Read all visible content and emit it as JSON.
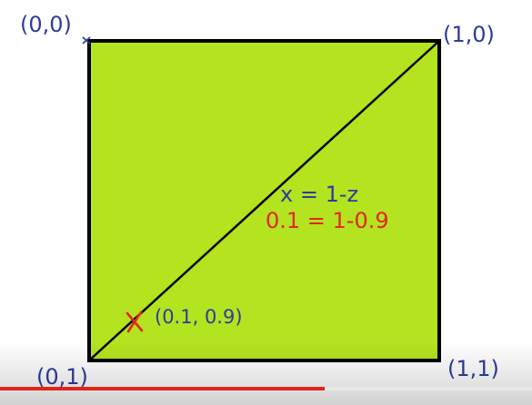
{
  "labels": {
    "top_left": "(0,0)",
    "top_right": "(1,0)",
    "bottom_left": "(0,1)",
    "bottom_right": "(1,1)",
    "point": "(0.1, 0.9)",
    "equation_general": "x = 1-z",
    "equation_example": "0.1 = 1-0.9"
  },
  "colors": {
    "square_fill": "#b4e31f",
    "ink_blue": "#2e3c9c",
    "ink_red": "#e3261a",
    "outline": "#000000",
    "progress_played": "#e0241b"
  },
  "player": {
    "progress_fraction": 0.61,
    "buffer_fraction": 1.0
  }
}
